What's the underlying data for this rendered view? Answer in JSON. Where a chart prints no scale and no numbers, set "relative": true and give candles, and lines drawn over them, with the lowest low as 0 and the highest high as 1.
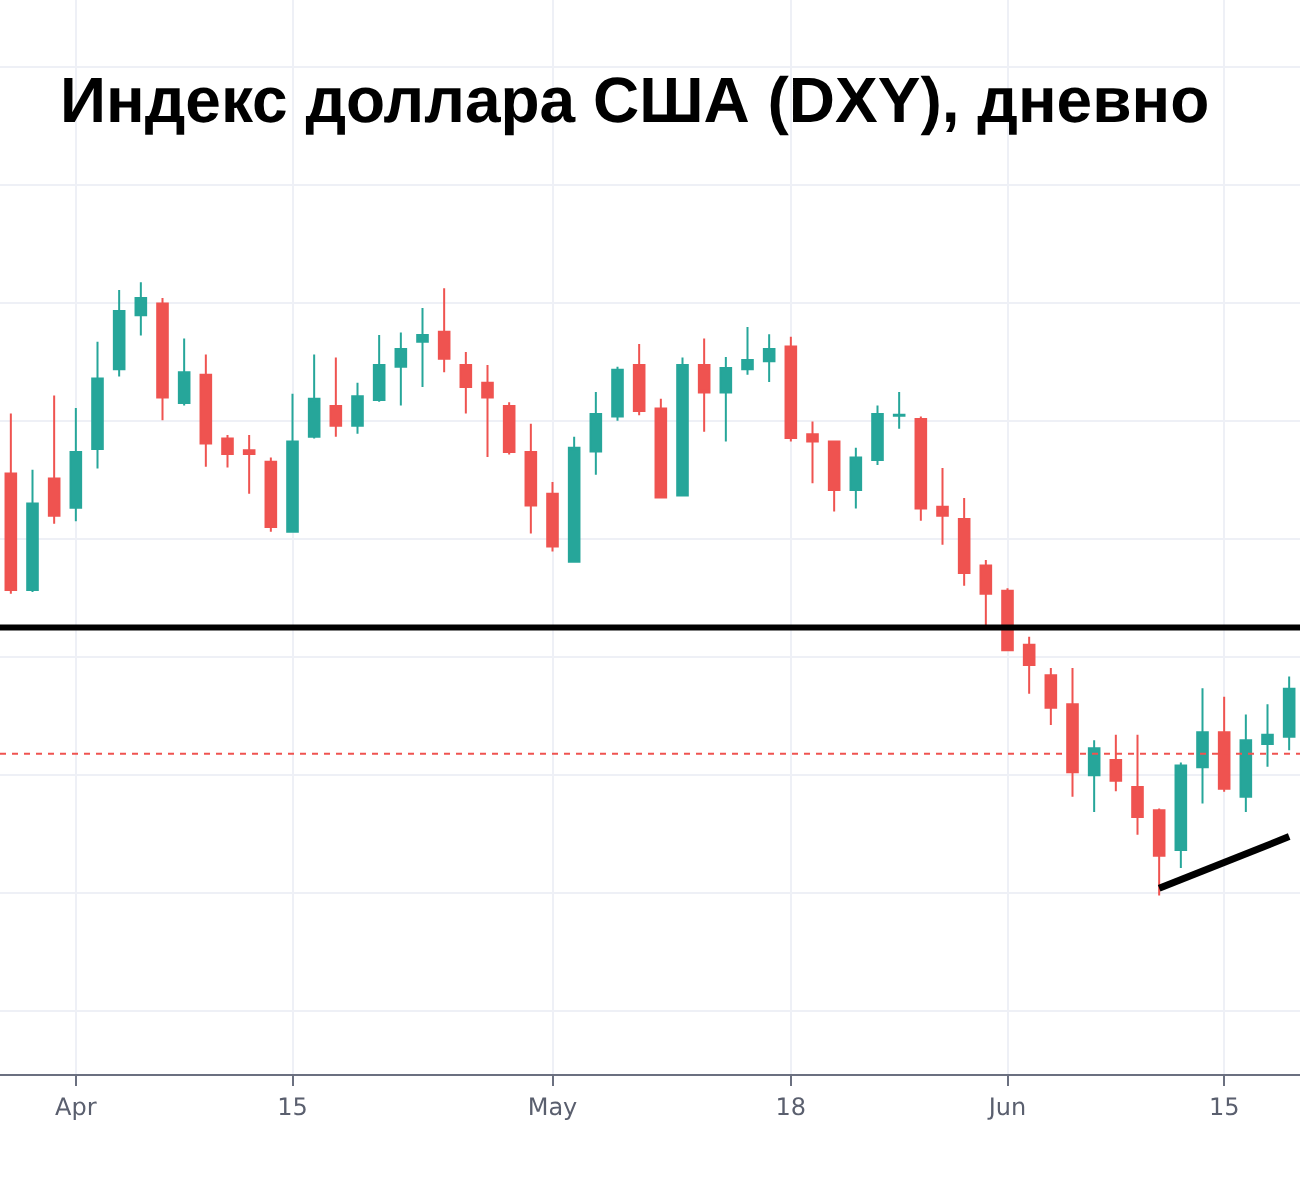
{
  "chart_data": {
    "type": "candlestick",
    "title": "Индекс доллара США (DXY), дневно",
    "relative": true,
    "grid": true,
    "categories": [
      null,
      null,
      null,
      "Apr",
      null,
      null,
      null,
      null,
      null,
      null,
      null,
      null,
      null,
      "15",
      null,
      null,
      null,
      null,
      null,
      null,
      null,
      null,
      null,
      null,
      null,
      "May",
      null,
      null,
      null,
      null,
      null,
      null,
      null,
      null,
      null,
      null,
      "18",
      null,
      null,
      null,
      null,
      null,
      null,
      null,
      null,
      null,
      "Jun",
      null,
      null,
      null,
      null,
      null,
      null,
      null,
      null,
      null,
      "15",
      null,
      null,
      null
    ],
    "ohlc": [
      [
        0.688,
        0.786,
        0.492,
        0.498
      ],
      [
        0.498,
        0.694,
        0.495,
        0.639
      ],
      [
        0.68,
        0.815,
        0.606,
        0.619
      ],
      [
        0.632,
        0.795,
        0.61,
        0.723
      ],
      [
        0.728,
        0.903,
        0.696,
        0.843
      ],
      [
        0.858,
        0.987,
        0.846,
        0.953
      ],
      [
        0.946,
        1.0,
        0.913,
        0.974
      ],
      [
        0.965,
        0.974,
        0.775,
        0.812
      ],
      [
        0.803,
        0.908,
        0.799,
        0.853
      ],
      [
        0.849,
        0.882,
        0.699,
        0.737
      ],
      [
        0.745,
        0.751,
        0.698,
        0.72
      ],
      [
        0.726,
        0.751,
        0.655,
        0.72
      ],
      [
        0.707,
        0.714,
        0.593,
        0.601
      ],
      [
        0.593,
        0.818,
        0.593,
        0.74
      ],
      [
        0.748,
        0.882,
        0.745,
        0.81
      ],
      [
        0.798,
        0.877,
        0.748,
        0.766
      ],
      [
        0.766,
        0.836,
        0.753,
        0.814
      ],
      [
        0.808,
        0.914,
        0.805,
        0.865
      ],
      [
        0.862,
        0.918,
        0.799,
        0.891
      ],
      [
        0.903,
        0.958,
        0.829,
        0.914
      ],
      [
        0.919,
        0.99,
        0.853,
        0.875
      ],
      [
        0.865,
        0.886,
        0.786,
        0.829
      ],
      [
        0.836,
        0.865,
        0.715,
        0.812
      ],
      [
        0.798,
        0.804,
        0.719,
        0.723
      ],
      [
        0.723,
        0.769,
        0.59,
        0.636
      ],
      [
        0.655,
        0.674,
        0.561,
        0.569
      ],
      [
        0.544,
        0.748,
        0.544,
        0.73
      ],
      [
        0.724,
        0.821,
        0.686,
        0.785
      ],
      [
        0.781,
        0.862,
        0.774,
        0.857
      ],
      [
        0.865,
        0.899,
        0.783,
        0.79
      ],
      [
        0.794,
        0.81,
        0.649,
        0.649
      ],
      [
        0.652,
        0.877,
        0.652,
        0.865
      ],
      [
        0.865,
        0.908,
        0.756,
        0.82
      ],
      [
        0.82,
        0.878,
        0.74,
        0.86
      ],
      [
        0.858,
        0.927,
        0.849,
        0.873
      ],
      [
        0.871,
        0.915,
        0.837,
        0.891
      ],
      [
        0.895,
        0.911,
        0.74,
        0.746
      ],
      [
        0.752,
        0.773,
        0.672,
        0.74
      ],
      [
        0.74,
        0.74,
        0.626,
        0.661
      ],
      [
        0.661,
        0.73,
        0.631,
        0.714
      ],
      [
        0.71,
        0.799,
        0.702,
        0.785
      ],
      [
        0.782,
        0.821,
        0.761,
        0.784
      ],
      [
        0.777,
        0.781,
        0.611,
        0.631
      ],
      [
        0.634,
        0.697,
        0.572,
        0.619
      ],
      [
        0.614,
        0.648,
        0.505,
        0.526
      ],
      [
        0.538,
        0.547,
        0.433,
        0.492
      ],
      [
        0.497,
        0.501,
        0.4,
        0.4
      ],
      [
        0.409,
        0.422,
        0.329,
        0.376
      ],
      [
        0.359,
        0.371,
        0.278,
        0.306
      ],
      [
        0.312,
        0.371,
        0.161,
        0.201
      ],
      [
        0.196,
        0.253,
        0.136,
        0.24
      ],
      [
        0.221,
        0.262,
        0.17,
        0.187
      ],
      [
        0.177,
        0.262,
        0.099,
        0.128
      ],
      [
        0.139,
        0.142,
        0.0,
        0.065
      ],
      [
        0.074,
        0.217,
        0.045,
        0.212
      ],
      [
        0.209,
        0.338,
        0.15,
        0.266
      ],
      [
        0.266,
        0.324,
        0.169,
        0.174
      ],
      [
        0.161,
        0.295,
        0.136,
        0.253
      ],
      [
        0.247,
        0.312,
        0.21,
        0.262
      ],
      [
        0.259,
        0.357,
        0.237,
        0.337
      ]
    ],
    "colors": [
      "#ef5350",
      "#26a69a",
      "#ef5350",
      "#26a69a",
      "#26a69a",
      "#26a69a",
      "#26a69a",
      "#ef5350",
      "#26a69a",
      "#ef5350",
      "#ef5350",
      "#ef5350",
      "#ef5350",
      "#26a69a",
      "#26a69a",
      "#ef5350",
      "#26a69a",
      "#26a69a",
      "#26a69a",
      "#26a69a",
      "#ef5350",
      "#ef5350",
      "#ef5350",
      "#ef5350",
      "#ef5350",
      "#ef5350",
      "#26a69a",
      "#26a69a",
      "#26a69a",
      "#ef5350",
      "#ef5350",
      "#26a69a",
      "#ef5350",
      "#26a69a",
      "#26a69a",
      "#26a69a",
      "#ef5350",
      "#ef5350",
      "#ef5350",
      "#26a69a",
      "#26a69a",
      "#26a69a",
      "#ef5350",
      "#ef5350",
      "#ef5350",
      "#ef5350",
      "#ef5350",
      "#ef5350",
      "#ef5350",
      "#ef5350",
      "#26a69a",
      "#ef5350",
      "#ef5350",
      "#ef5350",
      "#26a69a",
      "#26a69a",
      "#ef5350",
      "#26a69a",
      "#26a69a",
      "#26a69a"
    ],
    "series": [
      {
        "type": "line",
        "color": "#000000",
        "values": [
          null,
          null,
          null,
          null,
          null,
          null,
          null,
          null,
          null,
          null,
          null,
          null,
          null,
          null,
          null,
          null,
          null,
          null,
          null,
          null,
          null,
          null,
          null,
          null,
          null,
          null,
          null,
          null,
          null,
          null,
          null,
          null,
          null,
          null,
          null,
          null,
          null,
          null,
          null,
          null,
          null,
          null,
          null,
          null,
          null,
          null,
          null,
          null,
          null,
          null,
          null,
          null,
          null,
          0.012,
          null,
          null,
          null,
          null,
          null,
          0.096
        ]
      }
    ],
    "ref_lines": [
      {
        "axis": "y",
        "value": 0.437,
        "color": "#000000",
        "line_style": "solid"
      },
      {
        "axis": "y",
        "value": 0.231,
        "color": "#ef5350",
        "line_style": "dotted"
      }
    ]
  }
}
